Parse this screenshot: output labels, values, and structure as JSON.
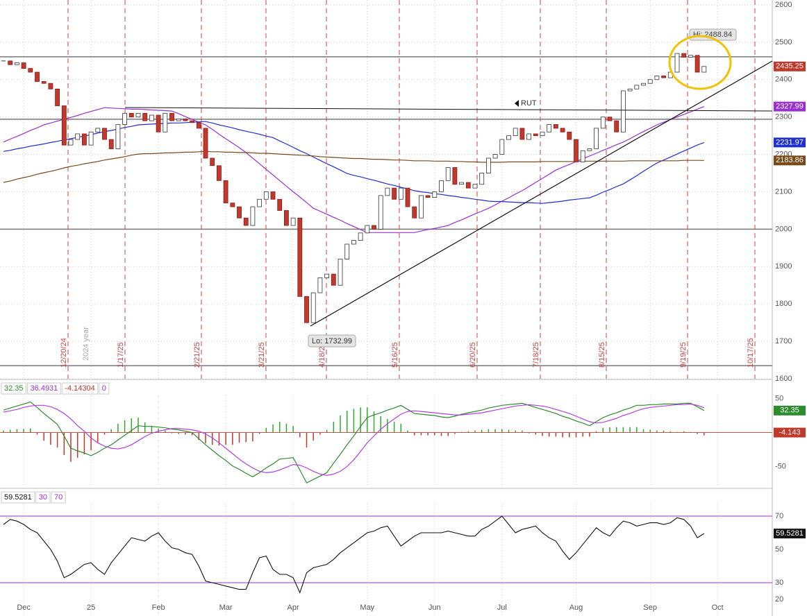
{
  "chart_data": {
    "type": "candlestick",
    "symbol": "RUT",
    "categories": [
      null,
      null,
      null,
      "Dec",
      null,
      null,
      null,
      null,
      null,
      null,
      null,
      null,
      null,
      "25",
      null,
      null,
      null,
      null,
      null,
      null,
      null,
      null,
      null,
      "Feb",
      null,
      null,
      null,
      null,
      null,
      null,
      null,
      null,
      null,
      "Mar",
      null,
      null,
      null,
      null,
      null,
      null,
      null,
      null,
      null,
      "Apr",
      null,
      null,
      null,
      null,
      null,
      null,
      null,
      null,
      null,
      null,
      "May",
      null,
      null,
      null,
      null,
      null,
      null,
      null,
      null,
      null,
      "Jun",
      null,
      null,
      null,
      null,
      null,
      null,
      null,
      null,
      null,
      "Jul",
      null,
      null,
      null,
      null,
      null,
      null,
      null,
      null,
      null,
      null,
      "Aug",
      null,
      null,
      null,
      null,
      null,
      null,
      null,
      null,
      null,
      null,
      "Sep",
      null,
      null,
      null,
      null,
      null,
      null,
      null,
      null,
      null,
      "Oct",
      null,
      null,
      null,
      null,
      null
    ],
    "close": [
      2450,
      2440,
      2445,
      2430,
      2420,
      2395,
      2390,
      2375,
      2330,
      2225,
      2240,
      2255,
      2225,
      2260,
      2270,
      2240,
      2215,
      2280,
      2310,
      2300,
      2310,
      2290,
      2305,
      2260,
      2310,
      2290,
      2295,
      2290,
      2285,
      2270,
      2190,
      2170,
      2130,
      2070,
      2060,
      2030,
      2010,
      2060,
      2080,
      2100,
      2080,
      2050,
      2010,
      2030,
      1820,
      1750,
      1830,
      1870,
      1880,
      1850,
      1920,
      1960,
      1970,
      1990,
      2010,
      2000,
      2090,
      2110,
      2080,
      2110,
      2060,
      2030,
      2090,
      2085,
      2100,
      2130,
      2165,
      2120,
      2125,
      2110,
      2120,
      2150,
      2190,
      2200,
      2240,
      2250,
      2270,
      2240,
      2255,
      2250,
      2260,
      2280,
      2270,
      2260,
      2240,
      2180,
      2210,
      2215,
      2270,
      2300,
      2290,
      2260,
      2370,
      2375,
      2385,
      2390,
      2400,
      2410,
      2405,
      2420,
      2470,
      2460,
      2465,
      2420,
      2435.25,
      null,
      null,
      null,
      null,
      null,
      null,
      null
    ],
    "up_color": "#ffffff",
    "down_color": "#c0392b",
    "overlays": [
      {
        "color": "#9b30d0",
        "values": [
          2233,
          2241,
          2248,
          2256,
          2264,
          2271,
          2279,
          2284,
          2289,
          2294,
          2299,
          2304,
          2310,
          2315,
          2320,
          2325,
          2324,
          2323,
          2322,
          2321,
          2321,
          2320,
          2319,
          2318,
          2317,
          2316,
          2309,
          2301,
          2294,
          2286,
          2279,
          2267,
          2254,
          2242,
          2230,
          2218,
          2205,
          2190,
          2175,
          2160,
          2145,
          2130,
          2115,
          2100,
          2086,
          2071,
          2056,
          2048,
          2040,
          2032,
          2024,
          2015,
          2007,
          1999,
          1991,
          1991,
          1991,
          1991,
          1991,
          1991,
          1991,
          1991,
          1995,
          1999,
          2002,
          2006,
          2010,
          2018,
          2025,
          2033,
          2041,
          2048,
          2056,
          2065,
          2075,
          2084,
          2094,
          2103,
          2114,
          2125,
          2136,
          2147,
          2158,
          2166,
          2173,
          2181,
          2188,
          2196,
          2203,
          2211,
          2218,
          2226,
          2233,
          2242,
          2252,
          2261,
          2270,
          2279,
          2286,
          2293,
          2300,
          2307,
          2314,
          2321,
          2327.99,
          null,
          null,
          null,
          null,
          null,
          null,
          null
        ]
      },
      {
        "color": "#1f2fd0",
        "values": [
          2208,
          2211,
          2215,
          2218,
          2222,
          2225,
          2228,
          2232,
          2235,
          2239,
          2242,
          2246,
          2249,
          2253,
          2257,
          2261,
          2264,
          2268,
          2272,
          2275,
          2279,
          2280,
          2281,
          2282,
          2283,
          2284,
          2284,
          2285,
          2286,
          2287,
          2288,
          2284,
          2279,
          2275,
          2271,
          2266,
          2262,
          2258,
          2254,
          2249,
          2245,
          2236,
          2228,
          2219,
          2210,
          2202,
          2193,
          2184,
          2175,
          2167,
          2158,
          2149,
          2144,
          2140,
          2135,
          2131,
          2126,
          2121,
          2117,
          2112,
          2108,
          2103,
          2100,
          2098,
          2095,
          2093,
          2090,
          2088,
          2085,
          2083,
          2080,
          2078,
          2075,
          2074,
          2074,
          2073,
          2072,
          2071,
          2071,
          2070,
          2069,
          2071,
          2073,
          2075,
          2078,
          2080,
          2082,
          2084,
          2091,
          2099,
          2106,
          2114,
          2121,
          2132,
          2143,
          2155,
          2166,
          2177,
          2185,
          2193,
          2201,
          2209,
          2217,
          2225,
          2231.97,
          null,
          null,
          null,
          null,
          null,
          null,
          null
        ]
      },
      {
        "color": "#7a4a1a",
        "values": [
          2125,
          2129,
          2134,
          2138,
          2142,
          2147,
          2151,
          2155,
          2159,
          2164,
          2168,
          2171,
          2175,
          2178,
          2181,
          2185,
          2188,
          2191,
          2194,
          2198,
          2201,
          2202,
          2202,
          2203,
          2204,
          2204,
          2205,
          2206,
          2206,
          2207,
          2208,
          2207,
          2207,
          2206,
          2206,
          2205,
          2205,
          2204,
          2203,
          2203,
          2202,
          2201,
          2200,
          2199,
          2198,
          2197,
          2196,
          2194,
          2193,
          2192,
          2191,
          2190,
          2189,
          2189,
          2188,
          2187,
          2187,
          2186,
          2185,
          2185,
          2184,
          2183,
          2183,
          2183,
          2182,
          2182,
          2182,
          2181,
          2181,
          2180,
          2180,
          2179,
          2179,
          2179,
          2179,
          2180,
          2180,
          2180,
          2180,
          2180,
          2181,
          2181,
          2181,
          2181,
          2181,
          2181,
          2182,
          2182,
          2182,
          2182,
          2182,
          2182,
          2182,
          2183,
          2183,
          2183,
          2183,
          2183,
          2183,
          2183,
          2183,
          2184,
          2184,
          2184,
          2183.86,
          null,
          null,
          null,
          null,
          null,
          null,
          null
        ]
      }
    ],
    "hlines": [
      2461,
      2294,
      2000,
      1635
    ],
    "ylim": [
      1600,
      2600
    ],
    "yticks": [
      1600,
      1700,
      1800,
      1900,
      2000,
      2100,
      2200,
      2300,
      2400,
      2500,
      2600
    ],
    "grid": true,
    "cycle_dates": [
      "12/20/24",
      "1/17/25",
      "2/21/25",
      "3/21/25",
      "4/18/25",
      "5/16/25",
      "6/20/25",
      "7/18/25",
      "8/15/25",
      "9/19/25",
      "10/17/25"
    ],
    "year_label": "2024 year",
    "hi_label": "Hi: 2488.84",
    "lo_label": "Lo: 1732.99",
    "macd": {
      "ylim": [
        -80,
        75
      ],
      "yticks": [
        -50,
        50
      ],
      "zero": 0,
      "macd": {
        "color": "#2e8b2e",
        "values": [
          33,
          36,
          39,
          42,
          45,
          37,
          28,
          20,
          12,
          -5,
          -23,
          -27,
          -30,
          -34,
          -29,
          -23,
          -18,
          -11,
          -4,
          3,
          10,
          9,
          9,
          8,
          7,
          5,
          4,
          2,
          0,
          -9,
          -18,
          -26,
          -34,
          -41,
          -49,
          -54,
          -60,
          -65,
          -59,
          -52,
          -46,
          -39,
          -38,
          -37,
          -55,
          -74,
          -69,
          -64,
          -59,
          -45,
          -32,
          -18,
          -5,
          9,
          22,
          26,
          29,
          33,
          36,
          40,
          34,
          28,
          27,
          26,
          25,
          23,
          22,
          24,
          27,
          29,
          31,
          33,
          36,
          38,
          40,
          41,
          42,
          43,
          40,
          37,
          34,
          31,
          28,
          24,
          21,
          17,
          14,
          10,
          16,
          22,
          26,
          29,
          33,
          36,
          40,
          40,
          41,
          41,
          42,
          42,
          42,
          43,
          43,
          38,
          32.35,
          null,
          null,
          null,
          null,
          null,
          null,
          null
        ]
      },
      "signal": {
        "color": "#b040e0",
        "values": [
          30,
          32,
          34,
          37,
          39,
          40,
          40,
          38,
          34,
          28,
          20,
          10,
          2,
          -8,
          -15,
          -20,
          -23,
          -24,
          -22,
          -18,
          -12,
          -6,
          -1,
          2,
          4,
          6,
          6,
          5,
          4,
          2,
          -2,
          -8,
          -15,
          -23,
          -31,
          -39,
          -46,
          -52,
          -57,
          -59,
          -58,
          -55,
          -51,
          -47,
          -48,
          -52,
          -57,
          -61,
          -63,
          -61,
          -57,
          -50,
          -40,
          -28,
          -15,
          -5,
          5,
          13,
          20,
          27,
          31,
          32,
          31,
          30,
          29,
          28,
          27,
          26,
          26,
          27,
          28,
          29,
          31,
          33,
          35,
          37,
          39,
          40,
          41,
          40,
          39,
          37,
          34,
          31,
          28,
          24,
          20,
          16,
          14,
          15,
          18,
          21,
          25,
          28,
          32,
          35,
          37,
          38,
          39,
          40,
          41,
          41,
          42,
          40,
          36.4931,
          null,
          null,
          null,
          null,
          null,
          null,
          null
        ]
      },
      "hist_up": "#2eaa2e",
      "hist_down": "#c0392b",
      "histogram_last": -4.14304,
      "histogram_label": "-4.143"
    },
    "rsi": {
      "ylim": [
        10,
        85
      ],
      "yticks": [
        20,
        30,
        50,
        70
      ],
      "levels": [
        30,
        70
      ],
      "color": "#111111",
      "values": [
        65,
        68,
        67,
        65,
        62,
        60,
        55,
        50,
        43,
        33,
        35,
        38,
        41,
        42,
        38,
        35,
        42,
        47,
        52,
        57,
        56,
        55,
        58,
        60,
        55,
        51,
        50,
        48,
        47,
        40,
        31,
        30,
        29,
        28,
        27,
        26,
        26,
        36,
        45,
        46,
        38,
        35,
        35,
        33,
        24,
        36,
        39,
        40,
        41,
        44,
        48,
        51,
        54,
        57,
        60,
        61,
        63,
        64,
        58,
        52,
        55,
        58,
        60,
        60,
        60,
        60,
        61,
        60,
        59,
        58,
        58,
        62,
        64,
        67,
        70,
        65,
        60,
        62,
        63,
        64,
        60,
        57,
        55,
        49,
        44,
        48,
        53,
        58,
        63,
        60,
        58,
        63,
        67,
        66,
        64,
        65,
        66,
        66,
        65,
        66,
        69,
        68,
        64,
        57,
        59.5281,
        null,
        null,
        null,
        null,
        null,
        null,
        null
      ]
    }
  }
}
